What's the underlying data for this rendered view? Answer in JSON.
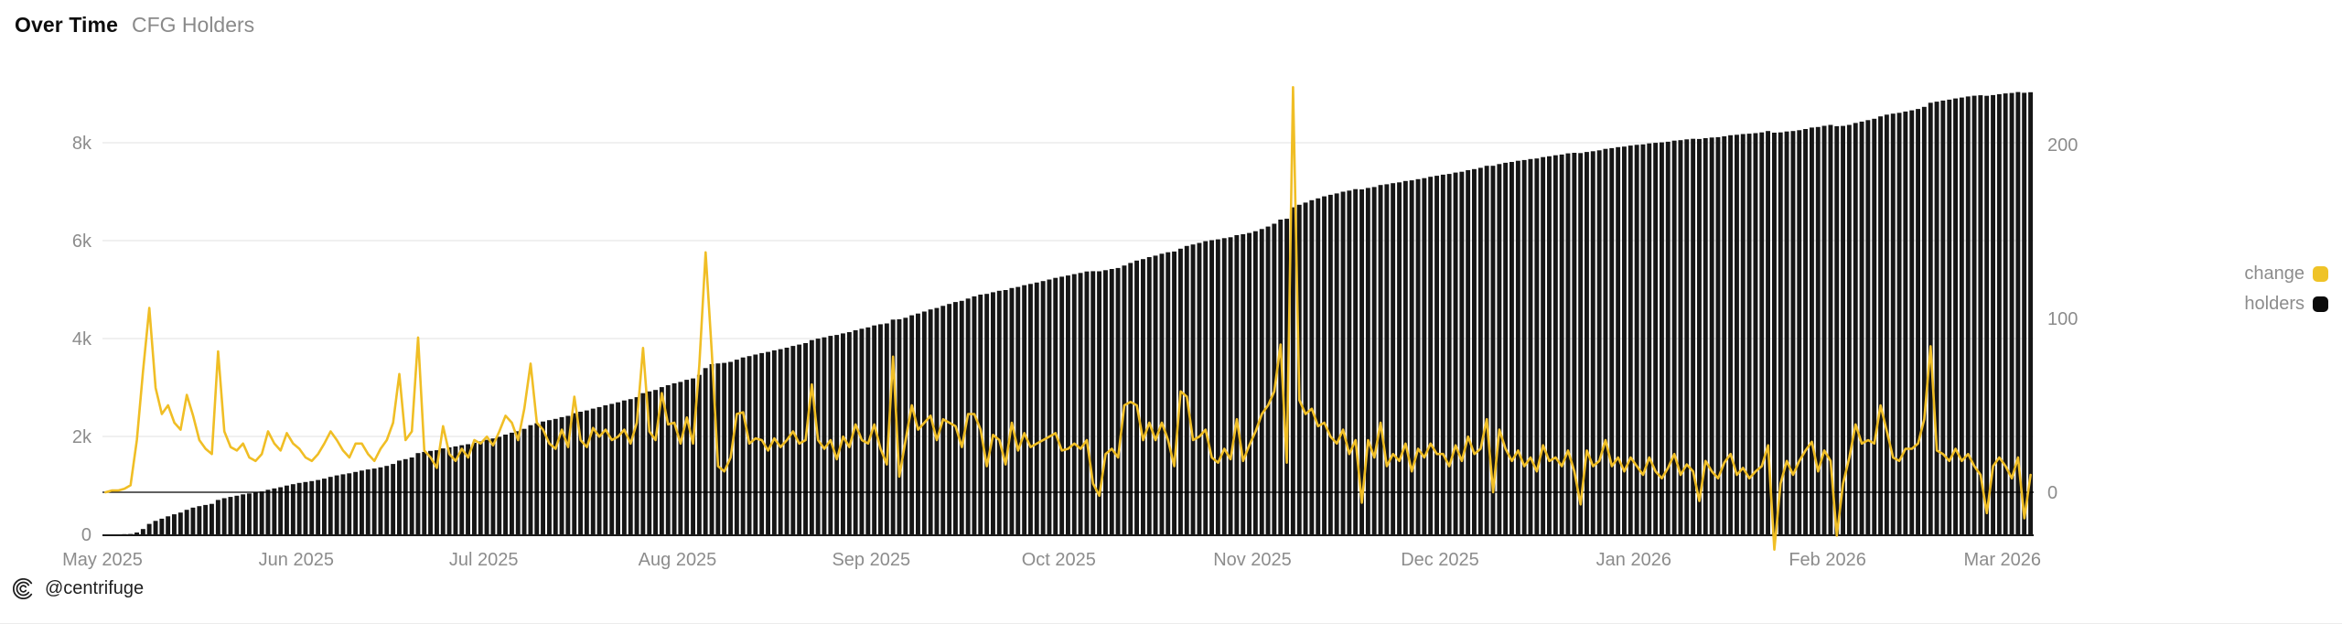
{
  "header": {
    "title": "Over Time",
    "subtitle": "CFG Holders"
  },
  "legend": {
    "items": [
      {
        "label": "change",
        "color": "#EFC327",
        "series": "change"
      },
      {
        "label": "holders",
        "color": "#0b0b0b",
        "series": "holders"
      }
    ]
  },
  "watermark": {
    "icon": "centrifuge-logo-icon",
    "handle": "@centrifuge"
  },
  "colors": {
    "line": "#F0BE25",
    "bar": "#161616",
    "gridline": "#ebebeb",
    "axis_text": "#8c8c8c",
    "zero_line": "#000000",
    "baseline": "#1a1a1a"
  },
  "chart_data": {
    "type": "combo",
    "title": "Over Time CFG Holders",
    "x_start_date": "2025-05-01",
    "frequency": "daily",
    "grid": "horizontal-only",
    "legend_position": "right",
    "x_ticks": [
      {
        "label": "May 2025",
        "day_offset": 0
      },
      {
        "label": "Jun 2025",
        "day_offset": 31
      },
      {
        "label": "Jul 2025",
        "day_offset": 61
      },
      {
        "label": "Aug 2025",
        "day_offset": 92
      },
      {
        "label": "Sep 2025",
        "day_offset": 123
      },
      {
        "label": "Oct 2025",
        "day_offset": 153
      },
      {
        "label": "Nov 2025",
        "day_offset": 184
      },
      {
        "label": "Dec 2025",
        "day_offset": 214
      },
      {
        "label": "Jan 2026",
        "day_offset": 245
      },
      {
        "label": "Feb 2026",
        "day_offset": 276
      },
      {
        "label": "Mar 2026",
        "day_offset": 304
      }
    ],
    "left_axis": {
      "series": "holders",
      "ticks": [
        {
          "value": 0,
          "label": "0"
        },
        {
          "value": 2000,
          "label": "2k"
        },
        {
          "value": 4000,
          "label": "4k"
        },
        {
          "value": 6000,
          "label": "6k"
        },
        {
          "value": 8000,
          "label": "8k"
        }
      ],
      "approx_max_plotted": 9100
    },
    "right_axis": {
      "series": "change",
      "ticks": [
        {
          "value": 0,
          "label": "0"
        },
        {
          "value": 100,
          "label": "100"
        },
        {
          "value": 200,
          "label": "200"
        }
      ],
      "approx_range": [
        -55,
        240
      ]
    },
    "series": [
      {
        "name": "change",
        "type": "line",
        "axis": "right",
        "color": "#F0BE25",
        "values": [
          0,
          1,
          1,
          2,
          4,
          30,
          70,
          106,
          60,
          45,
          50,
          40,
          36,
          56,
          44,
          30,
          25,
          22,
          81,
          35,
          26,
          24,
          28,
          20,
          18,
          22,
          35,
          28,
          24,
          34,
          28,
          25,
          20,
          18,
          22,
          28,
          35,
          30,
          24,
          20,
          28,
          28,
          22,
          18,
          25,
          30,
          40,
          68,
          30,
          35,
          89,
          24,
          20,
          14,
          38,
          22,
          18,
          25,
          20,
          30,
          28,
          32,
          27,
          35,
          44,
          40,
          30,
          48,
          74,
          40,
          36,
          28,
          25,
          36,
          26,
          55,
          30,
          26,
          37,
          32,
          36,
          30,
          32,
          36,
          28,
          40,
          83,
          35,
          30,
          57,
          39,
          40,
          28,
          43,
          28,
          73,
          138,
          80,
          15,
          12,
          20,
          45,
          46,
          28,
          31,
          30,
          24,
          31,
          26,
          30,
          35,
          28,
          30,
          62,
          30,
          25,
          30,
          19,
          32,
          26,
          39,
          30,
          28,
          39,
          25,
          16,
          78,
          9,
          30,
          50,
          36,
          40,
          44,
          30,
          42,
          40,
          38,
          26,
          45,
          45,
          36,
          15,
          33,
          30,
          16,
          40,
          24,
          34,
          26,
          28,
          30,
          32,
          34,
          24,
          25,
          28,
          25,
          30,
          5,
          -2,
          22,
          25,
          20,
          50,
          52,
          50,
          30,
          40,
          30,
          40,
          30,
          15,
          58,
          55,
          30,
          32,
          36,
          20,
          17,
          25,
          19,
          42,
          18,
          27,
          35,
          45,
          50,
          58,
          85,
          17,
          233,
          53,
          45,
          48,
          38,
          40,
          32,
          28,
          36,
          22,
          30,
          -6,
          30,
          20,
          40,
          15,
          22,
          18,
          28,
          12,
          25,
          20,
          28,
          22,
          22,
          15,
          27,
          18,
          32,
          22,
          25,
          42,
          0,
          36,
          25,
          18,
          24,
          15,
          20,
          12,
          27,
          18,
          20,
          15,
          24,
          12,
          -7,
          24,
          15,
          18,
          30,
          15,
          20,
          12,
          20,
          15,
          10,
          20,
          12,
          8,
          14,
          22,
          10,
          16,
          12,
          -5,
          18,
          12,
          8,
          17,
          22,
          10,
          14,
          8,
          12,
          15,
          27,
          -33,
          5,
          18,
          10,
          18,
          24,
          29,
          12,
          24,
          18,
          -25,
          5,
          20,
          39,
          28,
          30,
          28,
          50,
          35,
          20,
          18,
          25,
          25,
          28,
          42,
          84,
          24,
          22,
          18,
          25,
          18,
          22,
          15,
          10,
          -12,
          15,
          20,
          15,
          8,
          20,
          -15,
          10
        ]
      },
      {
        "name": "holders",
        "type": "bar",
        "axis": "left",
        "color": "#161616",
        "derived": "cumulative_sum_of_change",
        "approx_month_start_values": {
          "May 2025": 0,
          "Jun 2025": 1025,
          "Jul 2025": 1900,
          "Aug 2025": 3090,
          "Sep 2025": 4230,
          "Oct 2025": 5200,
          "Nov 2025": 6110,
          "Dec 2025": 7250,
          "Jan 2026": 7870,
          "Feb 2026": 8270,
          "Mar 2026": 8990
        }
      }
    ]
  }
}
